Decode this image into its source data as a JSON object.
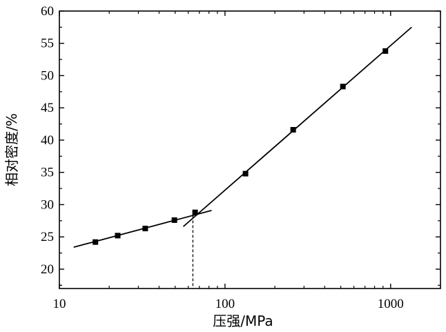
{
  "chart_data": {
    "type": "scatter",
    "title": "",
    "xlabel": "压强/MPa",
    "ylabel": "相对密度/%",
    "x_scale": "log",
    "xlim": [
      10,
      2000
    ],
    "ylim": [
      17,
      60
    ],
    "x_ticks": [
      10,
      100,
      1000
    ],
    "y_ticks": [
      20,
      25,
      30,
      35,
      40,
      45,
      50,
      55,
      60
    ],
    "grid": false,
    "legend": "none",
    "series": [
      {
        "marker": "square",
        "color": "#000000",
        "points": [
          {
            "x": 16.5,
            "y": 24.2
          },
          {
            "x": 22.5,
            "y": 25.2
          },
          {
            "x": 33,
            "y": 26.3
          },
          {
            "x": 49.5,
            "y": 27.6
          },
          {
            "x": 66,
            "y": 28.8
          },
          {
            "x": 133,
            "y": 34.8
          },
          {
            "x": 258,
            "y": 41.6
          },
          {
            "x": 515,
            "y": 48.3
          },
          {
            "x": 930,
            "y": 53.8
          }
        ]
      }
    ],
    "fit_lines": [
      {
        "x": [
          12.2,
          83
        ],
        "y": [
          23.4,
          29.1
        ]
      },
      {
        "x": [
          56,
          1340
        ],
        "y": [
          26.6,
          57.5
        ]
      }
    ],
    "reference_lines": [
      {
        "style": "dashed",
        "x": 64,
        "y_from": 17,
        "y_to": 28.3
      }
    ]
  }
}
